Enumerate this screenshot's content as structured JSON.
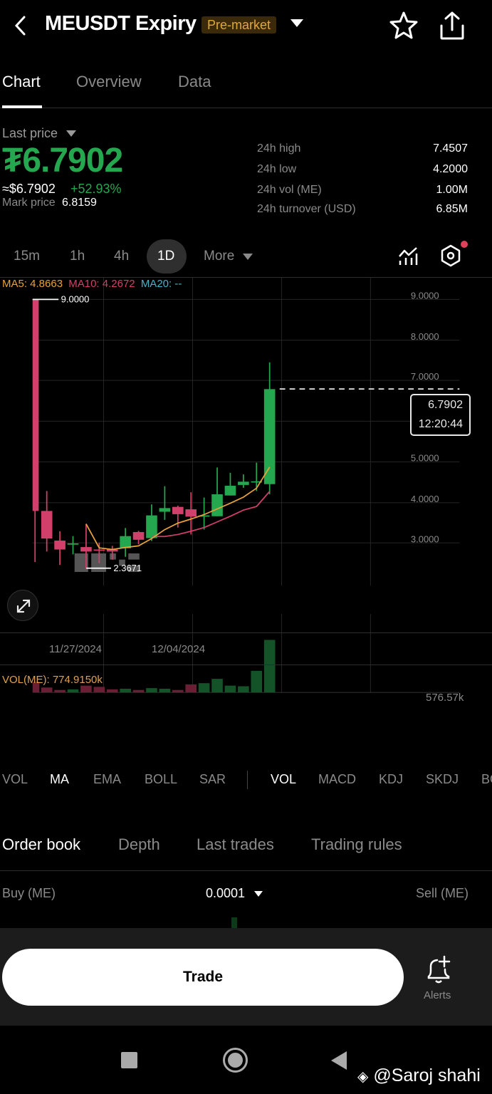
{
  "header": {
    "title": "MEUSDT Expiry",
    "badge": "Pre-market",
    "icons": [
      "back-icon",
      "dropdown-caret-icon",
      "star-icon",
      "share-icon"
    ]
  },
  "tabs": [
    {
      "label": "Chart",
      "active": true
    },
    {
      "label": "Overview",
      "active": false
    },
    {
      "label": "Data",
      "active": false
    }
  ],
  "price": {
    "label": "Last price",
    "value": "₮6.7902",
    "approx": "≈$6.7902",
    "change": "+52.93%",
    "mark_label": "Mark price",
    "mark_value": "6.8159"
  },
  "stats": [
    {
      "label": "24h high",
      "value": "7.4507"
    },
    {
      "label": "24h low",
      "value": "4.2000"
    },
    {
      "label": "24h vol (ME)",
      "value": "1.00M"
    },
    {
      "label": "24h turnover (USD)",
      "value": "6.85M"
    }
  ],
  "intervals": {
    "items": [
      "15m",
      "1h",
      "4h",
      "1D"
    ],
    "selected": "1D",
    "more": "More"
  },
  "chart": {
    "ma5": "MA5: 4.8663",
    "ma10": "MA10: 4.2672",
    "ma20": "MA20: --",
    "high_marker": "9.0000",
    "low_marker": "2.3671",
    "y_ticks": [
      "9.0000",
      "8.0000",
      "7.0000",
      "6.0000",
      "5.0000",
      "4.0000",
      "3.0000"
    ],
    "dates": [
      "11/27/2024",
      "12/04/2024"
    ],
    "price_tag": "6.7902",
    "countdown": "12:20:44",
    "vol_legend": "VOL(ME): 774.9150k",
    "vol_max": "576.57k",
    "colors": {
      "up": "#25a750",
      "down": "#d0406a",
      "ma5": "#e8a23a",
      "ma10": "#d0406a",
      "ma20": "#4ab0c8",
      "vol_up": "#145228",
      "vol_down": "#6a1f35"
    }
  },
  "chart_data": {
    "type": "candlestick",
    "title": "MEUSDT Expiry 1D",
    "ylim": [
      2.0,
      9.6
    ],
    "y_ticks": [
      3,
      4,
      5,
      6,
      7,
      8,
      9
    ],
    "x_labels": [
      "11/27/2024",
      "12/04/2024"
    ],
    "candles": [
      {
        "o": 9.0,
        "c": 3.79,
        "h": 9.0,
        "l": 2.53
      },
      {
        "o": 3.79,
        "c": 3.11,
        "h": 4.28,
        "l": 2.79
      },
      {
        "o": 3.06,
        "c": 2.84,
        "h": 3.29,
        "l": 2.46
      },
      {
        "o": 2.98,
        "c": 2.99,
        "h": 3.17,
        "l": 2.72
      },
      {
        "o": 2.9,
        "c": 2.79,
        "h": 3.47,
        "l": 2.37
      },
      {
        "o": 2.84,
        "c": 2.81,
        "h": 3.01,
        "l": 2.5
      },
      {
        "o": 2.84,
        "c": 2.79,
        "h": 2.93,
        "l": 2.59
      },
      {
        "o": 2.87,
        "c": 3.17,
        "h": 3.37,
        "l": 2.66
      },
      {
        "o": 3.27,
        "c": 3.08,
        "h": 3.3,
        "l": 2.97
      },
      {
        "o": 3.12,
        "c": 3.68,
        "h": 3.95,
        "l": 3.05
      },
      {
        "o": 3.77,
        "c": 3.86,
        "h": 4.4,
        "l": 3.57
      },
      {
        "o": 3.89,
        "c": 3.71,
        "h": 3.92,
        "l": 3.38
      },
      {
        "o": 3.83,
        "c": 3.65,
        "h": 4.25,
        "l": 3.21
      },
      {
        "o": 3.66,
        "c": 3.68,
        "h": 4.12,
        "l": 3.33
      },
      {
        "o": 3.66,
        "c": 4.2,
        "h": 4.86,
        "l": 3.66
      },
      {
        "o": 4.17,
        "c": 4.41,
        "h": 4.73,
        "l": 4.17
      },
      {
        "o": 4.43,
        "c": 4.51,
        "h": 4.69,
        "l": 4.36
      },
      {
        "o": 4.51,
        "c": 4.52,
        "h": 4.98,
        "l": 4.28
      },
      {
        "o": 4.45,
        "c": 6.79,
        "h": 7.45,
        "l": 4.2
      }
    ],
    "ma5": [
      null,
      null,
      null,
      null,
      3.47,
      2.88,
      2.84,
      2.89,
      2.93,
      3.11,
      3.33,
      3.49,
      3.59,
      3.7,
      3.84,
      3.98,
      4.13,
      4.35,
      4.87
    ],
    "ma10": [
      null,
      null,
      null,
      null,
      null,
      null,
      null,
      null,
      null,
      3.16,
      3.16,
      3.21,
      3.29,
      3.38,
      3.52,
      3.66,
      3.81,
      3.9,
      4.27
    ],
    "volume": [
      17,
      8,
      4,
      5,
      11,
      9,
      5,
      6,
      4,
      7,
      6,
      4,
      13,
      15,
      22,
      11,
      10,
      35,
      85
    ],
    "volume_unit": "px-relative; max label 576.57k"
  },
  "indicators": {
    "main": [
      {
        "label": "VOL",
        "active": false
      },
      {
        "label": "MA",
        "active": true
      },
      {
        "label": "EMA",
        "active": false
      },
      {
        "label": "BOLL",
        "active": false
      },
      {
        "label": "SAR",
        "active": false
      }
    ],
    "sub": [
      {
        "label": "VOL",
        "active": true
      },
      {
        "label": "MACD",
        "active": false
      },
      {
        "label": "KDJ",
        "active": false
      },
      {
        "label": "SKDJ",
        "active": false
      },
      {
        "label": "BOLL",
        "active": false
      }
    ]
  },
  "orderbook": {
    "tabs": [
      {
        "label": "Order book",
        "active": true
      },
      {
        "label": "Depth",
        "active": false
      },
      {
        "label": "Last trades",
        "active": false
      },
      {
        "label": "Trading rules",
        "active": false
      }
    ],
    "buy_label": "Buy (ME)",
    "step": "0.0001",
    "sell_label": "Sell (ME)"
  },
  "bottom": {
    "trade": "Trade",
    "alerts": "Alerts"
  },
  "watermark": "@Saroj shahi"
}
